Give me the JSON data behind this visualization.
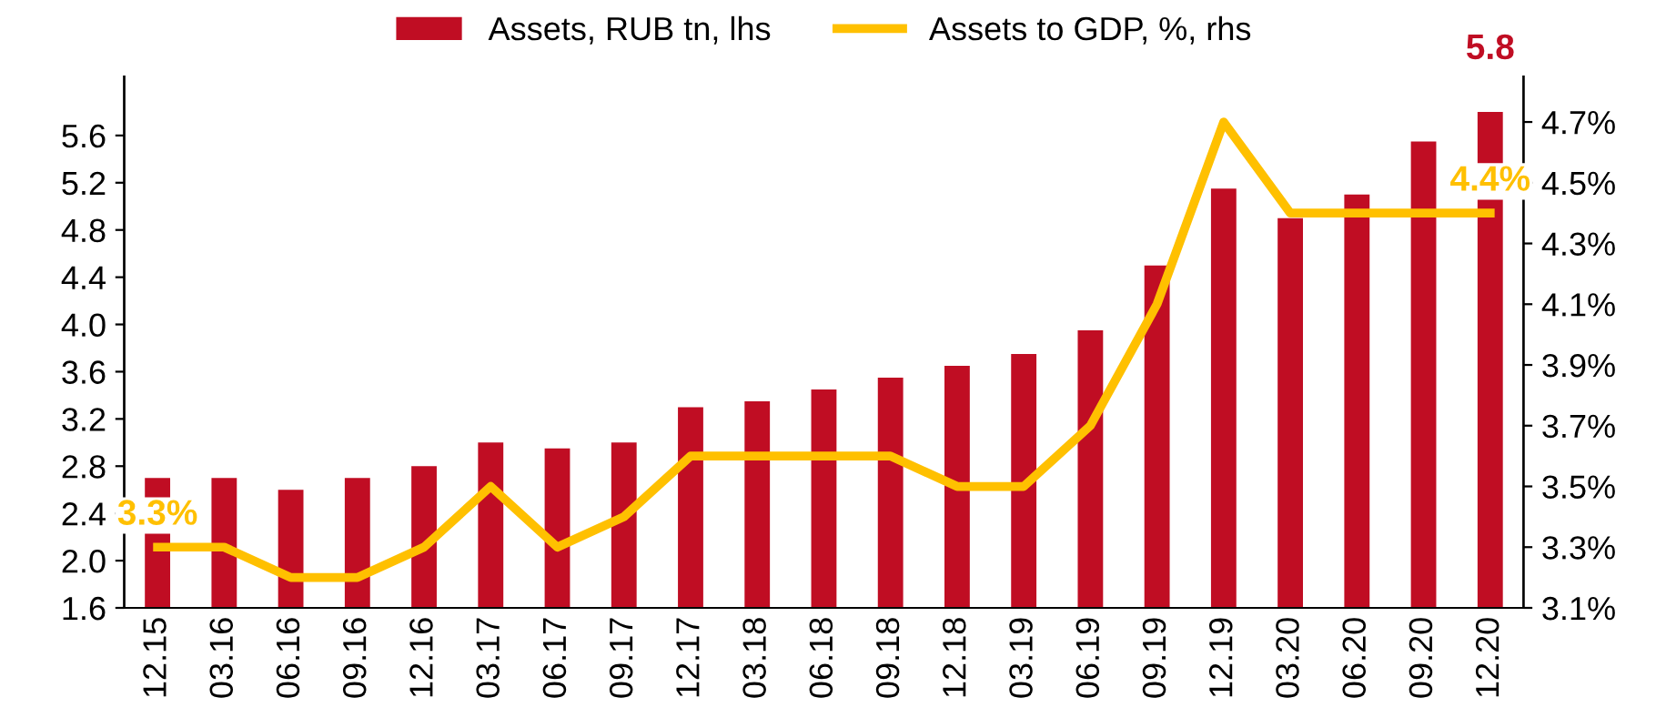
{
  "chart_data": {
    "type": "bar",
    "categories": [
      "12.15",
      "03.16",
      "06.16",
      "09.16",
      "12.16",
      "03.17",
      "06.17",
      "09.17",
      "12.17",
      "03.18",
      "06.18",
      "09.18",
      "12.18",
      "03.19",
      "06.19",
      "09.19",
      "12.19",
      "03.20",
      "06.20",
      "09.20",
      "12.20"
    ],
    "series": [
      {
        "name": "Assets, RUB tn, lhs",
        "color": "#c00d23",
        "values": [
          2.7,
          2.7,
          2.6,
          2.7,
          2.8,
          3.0,
          2.95,
          3.0,
          3.3,
          3.35,
          3.45,
          3.55,
          3.65,
          3.75,
          3.95,
          4.5,
          5.15,
          4.9,
          5.1,
          5.55,
          5.8
        ],
        "value_labels": [
          null,
          null,
          null,
          null,
          null,
          null,
          null,
          null,
          null,
          null,
          null,
          null,
          null,
          null,
          null,
          null,
          null,
          null,
          null,
          null,
          "5.8"
        ]
      },
      {
        "name": "Assets to GDP, %, rhs",
        "type": "line",
        "axis": "y2",
        "color": "#ffc000",
        "values": [
          3.3,
          3.3,
          3.2,
          3.2,
          3.3,
          3.5,
          3.3,
          3.4,
          3.6,
          3.6,
          3.6,
          3.6,
          3.5,
          3.5,
          3.7,
          4.1,
          4.7,
          4.4,
          4.4,
          4.4,
          4.4
        ],
        "value_labels": [
          "3.3%",
          null,
          null,
          null,
          null,
          null,
          null,
          null,
          null,
          null,
          null,
          null,
          null,
          null,
          null,
          null,
          null,
          null,
          null,
          null,
          "4.4%"
        ]
      }
    ],
    "ylim": [
      1.6,
      6.1
    ],
    "yticks": [
      1.6,
      {
        "value": 2.0,
        "label": "2.0"
      },
      2.4,
      2.8,
      3.2,
      3.6,
      {
        "value": 4.0,
        "label": "4.0"
      },
      4.4,
      4.8,
      5.2,
      5.6
    ],
    "y2lim": [
      3.1,
      4.85
    ],
    "y2ticks": [
      {
        "value": 3.1,
        "label": "3.1%"
      },
      {
        "value": 3.3,
        "label": "3.3%"
      },
      {
        "value": 3.5,
        "label": "3.5%"
      },
      {
        "value": 3.7,
        "label": "3.7%"
      },
      {
        "value": 3.9,
        "label": "3.9%"
      },
      {
        "value": 4.1,
        "label": "4.1%"
      },
      {
        "value": 4.3,
        "label": "4.3%"
      },
      {
        "value": 4.5,
        "label": "4.5%"
      },
      {
        "value": 4.7,
        "label": "4.7%"
      }
    ],
    "grid": false,
    "legend": "top",
    "marker": "none",
    "line_style": "solid"
  }
}
